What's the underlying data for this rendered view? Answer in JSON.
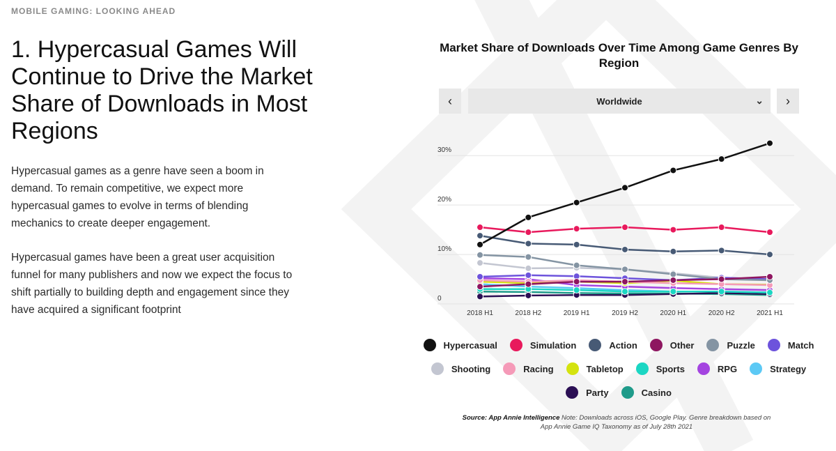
{
  "header": {
    "section_label": "MOBILE GAMING: LOOKING AHEAD",
    "title": "1. Hypercasual Games Will Continue to Drive the Market Share of Downloads in Most Regions"
  },
  "body": {
    "paragraph1": "Hypercasual games as a genre have seen a boom in demand. To remain competitive, we expect more hypercasual games to evolve in terms of blending mechanics to create deeper engagement.",
    "paragraph2": "Hypercasual games have been a great user acquisition funnel for many publishers and now we expect the focus to shift partially to building depth and engagement since they have acquired a significant footprint"
  },
  "controls": {
    "prev_label": "‹",
    "next_label": "›",
    "region_selected": "Worldwide",
    "chevron": "⌄"
  },
  "source": {
    "label": "Source: App Annie Intelligence",
    "note": "Note: Downloads across iOS, Google Play. Genre breakdown based on App Annie Game IQ Taxonomy as of July 28th 2021"
  },
  "chart_data": {
    "type": "line",
    "title": "Market Share of Downloads Over Time Among Game Genres By Region",
    "categories": [
      "2018 H1",
      "2018 H2",
      "2019 H1",
      "2019 H2",
      "2020 H1",
      "2020 H2",
      "2021 H1"
    ],
    "ylim": [
      0,
      32
    ],
    "yticks": [
      {
        "value": 0,
        "label": "0"
      },
      {
        "value": 10,
        "label": "10%"
      },
      {
        "value": 20,
        "label": "20%"
      },
      {
        "value": 30,
        "label": "30%"
      }
    ],
    "grid": true,
    "legend_position": "bottom",
    "series": [
      {
        "name": "Hypercasual",
        "color": "#111111",
        "values": [
          12,
          17.5,
          20.5,
          23.5,
          27,
          29.3,
          32.5
        ]
      },
      {
        "name": "Simulation",
        "color": "#e8195c",
        "values": [
          15.5,
          14.5,
          15.2,
          15.5,
          15,
          15.5,
          14.5
        ]
      },
      {
        "name": "Action",
        "color": "#475a75",
        "values": [
          13.8,
          12.2,
          12,
          11,
          10.6,
          10.8,
          10
        ]
      },
      {
        "name": "Other",
        "color": "#8e1660",
        "values": [
          3.5,
          4,
          4.5,
          4.5,
          4.8,
          5,
          5.5
        ]
      },
      {
        "name": "Puzzle",
        "color": "#8494a3",
        "values": [
          9.9,
          9.5,
          7.8,
          7,
          6,
          5,
          4.8
        ]
      },
      {
        "name": "Match",
        "color": "#6d53dc",
        "values": [
          5.5,
          5.8,
          5.6,
          5.2,
          4.8,
          5.3,
          5
        ]
      },
      {
        "name": "Shooting",
        "color": "#c3c6d1",
        "values": [
          8.3,
          7.2,
          7.3,
          7,
          6.2,
          5.3,
          5
        ]
      },
      {
        "name": "Racing",
        "color": "#f59ab8",
        "values": [
          4.8,
          4.5,
          4.8,
          4.5,
          4.2,
          4,
          3.8
        ]
      },
      {
        "name": "Tabletop",
        "color": "#d4e30f",
        "values": [
          4.5,
          4.2,
          4.5,
          4.2,
          4.7,
          4,
          3.9
        ]
      },
      {
        "name": "Sports",
        "color": "#1bd6c3",
        "values": [
          3,
          3,
          2.8,
          2.5,
          2.5,
          2.5,
          2.3
        ]
      },
      {
        "name": "RPG",
        "color": "#a444e0",
        "values": [
          5.2,
          5,
          3.8,
          3.5,
          3.2,
          3,
          2.8
        ]
      },
      {
        "name": "Strategy",
        "color": "#5cc9f5",
        "values": [
          4,
          3.5,
          3.2,
          2.8,
          2.5,
          2.5,
          2.3
        ]
      },
      {
        "name": "Party",
        "color": "#2b0f54",
        "values": [
          1.5,
          1.7,
          1.8,
          1.8,
          2,
          2.2,
          2
        ]
      },
      {
        "name": "Casino",
        "color": "#1f9b8a",
        "values": [
          2.5,
          2.4,
          2.2,
          2.1,
          2.1,
          2,
          1.8
        ]
      }
    ]
  }
}
